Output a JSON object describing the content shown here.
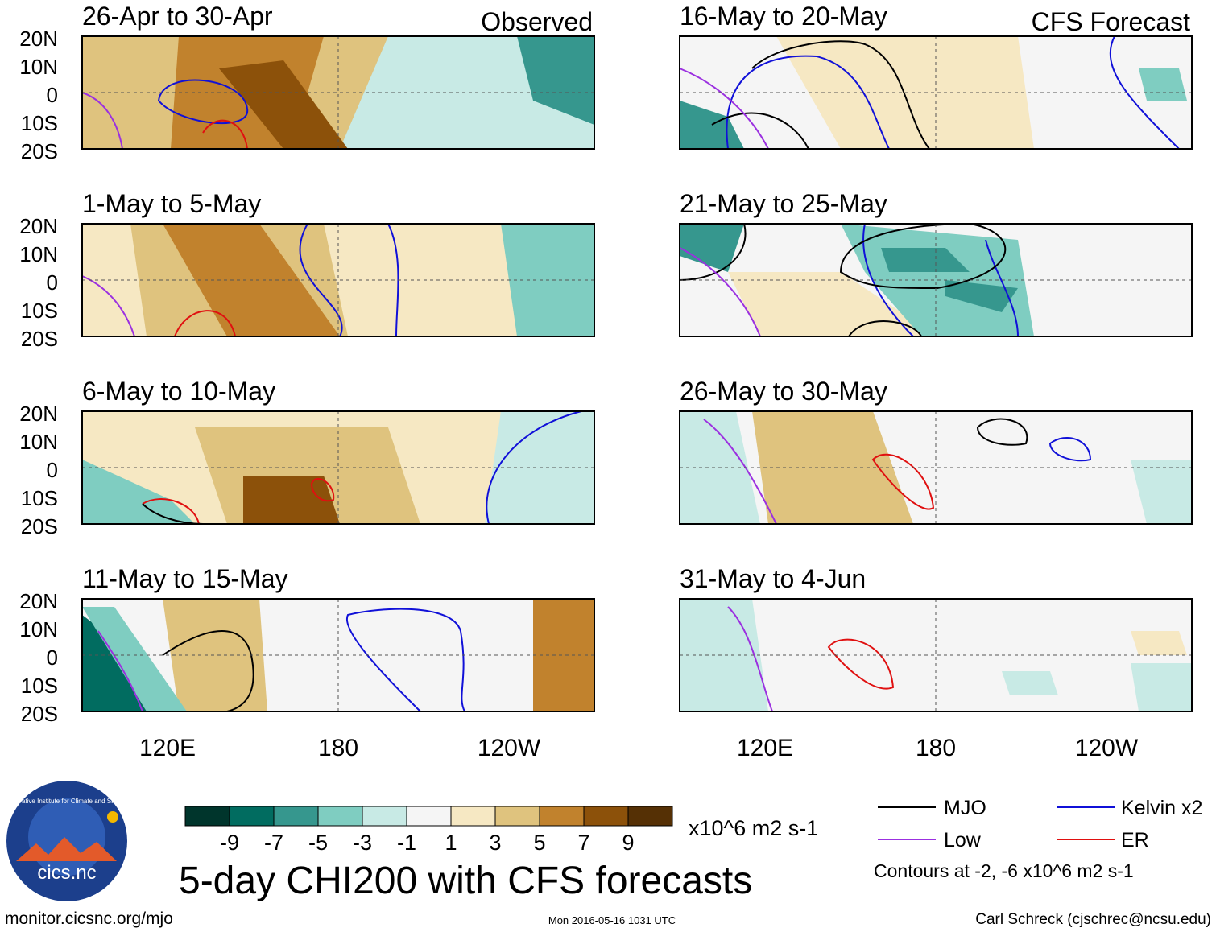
{
  "chart_data": {
    "type": "heatmap",
    "title": "5-day CHI200 with CFS forecasts",
    "columns": [
      {
        "header": "Observed",
        "panels": [
          "26-Apr to 30-Apr",
          "1-May to 5-May",
          "6-May to 10-May",
          "11-May to 15-May"
        ]
      },
      {
        "header": "CFS Forecast",
        "panels": [
          "16-May to 20-May",
          "21-May to 25-May",
          "26-May to 30-May",
          "31-May to 4-Jun"
        ]
      }
    ],
    "y_ticks": [
      "20N",
      "10N",
      "0",
      "10S",
      "20S"
    ],
    "x_ticks": [
      "120E",
      "180",
      "120W"
    ],
    "colorbar": {
      "colors": [
        "#00352c",
        "#016c60",
        "#36978e",
        "#7fcdc1",
        "#c8eae5",
        "#f5f5f5",
        "#f6e8c3",
        "#dfc37e",
        "#c1822d",
        "#8c510a",
        "#553005"
      ],
      "labels": [
        "-9",
        "-7",
        "-5",
        "-3",
        "-1",
        "1",
        "3",
        "5",
        "7",
        "9"
      ],
      "units": "x10^6 m2 s-1"
    },
    "legend": [
      {
        "label": "MJO",
        "color": "#000000"
      },
      {
        "label": "Kelvin x2",
        "color": "#1010d8"
      },
      {
        "label": "Low",
        "color": "#9b30e0"
      },
      {
        "label": "ER",
        "color": "#e01010"
      }
    ],
    "contour_note": "Contours at -2, -6 x10^6 m2 s-1"
  },
  "footer": {
    "logo_text": "cics.nc",
    "logo_ring_text": "Cooperative Institute for Climate and Satellites",
    "url": "monitor.cicsnc.org/mjo",
    "timestamp": "Mon 2016-05-16 1031 UTC",
    "author": "Carl Schreck (cjschrec@ncsu.edu)"
  }
}
